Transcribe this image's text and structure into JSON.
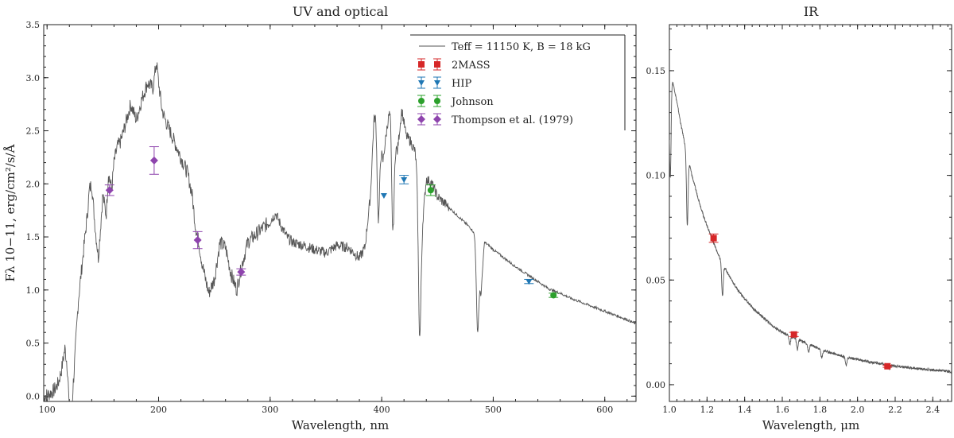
{
  "chart_data": [
    {
      "panel": "uv-optical",
      "type": "line",
      "title": "UV and optical",
      "xlabel": "Wavelength, nm",
      "ylabel": "Fλ 10−11, erg/cm²/s/Å",
      "xlim": [
        97,
        628
      ],
      "ylim": [
        -0.05,
        3.5
      ],
      "xticks": [
        "100",
        "200",
        "300",
        "400",
        "500",
        "600"
      ],
      "yticks": [
        "0.0",
        "0.5",
        "1.0",
        "1.5",
        "2.0",
        "2.5",
        "3.0",
        "3.5"
      ],
      "grid": false,
      "legend_position": "top-right",
      "legend": [
        {
          "label": "Teff = 11150 K, B = 18 kG",
          "kind": "line",
          "color": "#555555"
        },
        {
          "label": "2MASS",
          "kind": "square",
          "color": "#d62728"
        },
        {
          "label": "HIP",
          "kind": "triangle",
          "color": "#1f77b4"
        },
        {
          "label": "Johnson",
          "kind": "circle",
          "color": "#2ca02c"
        },
        {
          "label": "Thompson et al. (1979)",
          "kind": "diamond",
          "color": "#8e44ad"
        }
      ],
      "model_spectrum": {
        "name": "Teff = 11150 K, B = 18 kG",
        "color": "#555555",
        "x": [
          97,
          102,
          106,
          110,
          113,
          116,
          118,
          120,
          122,
          124,
          126,
          128,
          130,
          132,
          134,
          136,
          138,
          140,
          143,
          146,
          150,
          153,
          155,
          158,
          160,
          163,
          166,
          170,
          175,
          180,
          185,
          190,
          195,
          198,
          200,
          203,
          206,
          210,
          214,
          218,
          222,
          226,
          230,
          233,
          236,
          239,
          242,
          245,
          250,
          255,
          260,
          265,
          270,
          275,
          280,
          285,
          290,
          295,
          300,
          305,
          310,
          315,
          320,
          330,
          340,
          350,
          360,
          370,
          380,
          385,
          390,
          393,
          395,
          398,
          401,
          405,
          408,
          410,
          414,
          418,
          422,
          426,
          430,
          433,
          436,
          438,
          440,
          445,
          450,
          460,
          470,
          480,
          484,
          487,
          489,
          492,
          496,
          500,
          510,
          520,
          530,
          540,
          550,
          560,
          570,
          580,
          590,
          600,
          610,
          620,
          628
        ],
        "y": [
          0.0,
          0.02,
          0.05,
          0.12,
          0.25,
          0.45,
          0.3,
          0.1,
          0.05,
          0.2,
          0.55,
          0.9,
          1.1,
          1.3,
          1.5,
          1.7,
          1.95,
          2.0,
          1.6,
          1.3,
          1.9,
          1.7,
          2.1,
          1.95,
          2.2,
          2.35,
          2.4,
          2.55,
          2.75,
          2.6,
          2.8,
          2.95,
          2.9,
          3.15,
          2.95,
          2.7,
          2.6,
          2.5,
          2.4,
          2.3,
          2.2,
          2.1,
          1.9,
          1.6,
          1.45,
          1.25,
          1.1,
          0.97,
          1.1,
          1.45,
          1.4,
          1.15,
          1.0,
          1.25,
          1.45,
          1.5,
          1.55,
          1.6,
          1.65,
          1.72,
          1.6,
          1.5,
          1.45,
          1.42,
          1.38,
          1.35,
          1.42,
          1.4,
          1.3,
          1.4,
          1.9,
          2.6,
          2.7,
          2.5,
          2.2,
          2.55,
          2.75,
          2.55,
          2.3,
          2.7,
          2.45,
          2.4,
          2.3,
          2.0,
          1.6,
          1.8,
          2.05,
          2.0,
          1.88,
          1.78,
          1.68,
          1.58,
          1.52,
          1.35,
          0.95,
          1.45,
          1.42,
          1.38,
          1.3,
          1.22,
          1.15,
          1.08,
          1.01,
          0.97,
          0.92,
          0.88,
          0.84,
          0.8,
          0.76,
          0.72,
          0.68
        ]
      },
      "absorption_lines": [
        {
          "x": 121,
          "depth": 0.45
        },
        {
          "x": 397,
          "depth": 0.9
        },
        {
          "x": 410,
          "depth": 1.0
        },
        {
          "x": 434,
          "depth": 1.3
        },
        {
          "x": 486,
          "depth": 0.8
        }
      ],
      "series": [
        {
          "name": "Thompson et al. (1979)",
          "marker": "diamond",
          "color": "#8e44ad",
          "points": [
            {
              "x": 156,
              "y": 1.94,
              "err": 0.05
            },
            {
              "x": 196,
              "y": 2.22,
              "err": 0.13
            },
            {
              "x": 235,
              "y": 1.47,
              "err": 0.08
            },
            {
              "x": 274,
              "y": 1.17,
              "err": 0.03
            }
          ]
        },
        {
          "name": "HIP",
          "marker": "triangle",
          "color": "#1f77b4",
          "points": [
            {
              "x": 402,
              "y": 1.89,
              "err": 0.0
            },
            {
              "x": 420,
              "y": 2.04,
              "err": 0.04
            },
            {
              "x": 532,
              "y": 1.08,
              "err": 0.02
            }
          ]
        },
        {
          "name": "Johnson",
          "marker": "circle",
          "color": "#2ca02c",
          "points": [
            {
              "x": 444,
              "y": 1.94,
              "err": 0.05
            },
            {
              "x": 554,
              "y": 0.95,
              "err": 0.02
            }
          ]
        }
      ]
    },
    {
      "panel": "ir",
      "type": "line",
      "title": "IR",
      "xlabel": "Wavelength, μm",
      "xlim": [
        1.0,
        2.5
      ],
      "ylim": [
        -0.008,
        0.172
      ],
      "xticks": [
        "1.0",
        "1.2",
        "1.4",
        "1.6",
        "1.8",
        "2.0",
        "2.2",
        "2.4"
      ],
      "yticks": [
        "0.00",
        "0.05",
        "0.10",
        "0.15"
      ],
      "grid": false,
      "model_spectrum": {
        "name": "Teff = 11150 K, B = 18 kG",
        "color": "#555555",
        "x": [
          1.0,
          1.01,
          1.02,
          1.04,
          1.06,
          1.08,
          1.1,
          1.12,
          1.15,
          1.18,
          1.2,
          1.23,
          1.26,
          1.3,
          1.35,
          1.4,
          1.45,
          1.5,
          1.55,
          1.6,
          1.65,
          1.7,
          1.75,
          1.8,
          1.85,
          1.9,
          1.95,
          2.0,
          2.1,
          2.2,
          2.3,
          2.4,
          2.5
        ],
        "y": [
          0.14,
          0.148,
          0.144,
          0.135,
          0.125,
          0.116,
          0.108,
          0.1,
          0.09,
          0.081,
          0.076,
          0.069,
          0.062,
          0.055,
          0.047,
          0.041,
          0.036,
          0.032,
          0.028,
          0.025,
          0.023,
          0.021,
          0.019,
          0.017,
          0.0155,
          0.0142,
          0.013,
          0.012,
          0.0103,
          0.009,
          0.0079,
          0.007,
          0.0062
        ]
      },
      "absorption_lines": [
        {
          "x": 1.005,
          "depth": 0.045
        },
        {
          "x": 1.095,
          "depth": 0.034
        },
        {
          "x": 1.282,
          "depth": 0.016
        },
        {
          "x": 1.64,
          "depth": 0.004
        },
        {
          "x": 1.68,
          "depth": 0.005
        },
        {
          "x": 1.74,
          "depth": 0.004
        },
        {
          "x": 1.81,
          "depth": 0.004
        },
        {
          "x": 1.94,
          "depth": 0.004
        },
        {
          "x": 2.17,
          "depth": 0.002
        }
      ],
      "series": [
        {
          "name": "2MASS",
          "marker": "square",
          "color": "#d62728",
          "points": [
            {
              "x": 1.235,
              "y": 0.07,
              "err": 0.002
            },
            {
              "x": 1.662,
              "y": 0.024,
              "err": 0.001
            },
            {
              "x": 2.159,
              "y": 0.0088,
              "err": 0.0005
            }
          ]
        }
      ]
    }
  ]
}
